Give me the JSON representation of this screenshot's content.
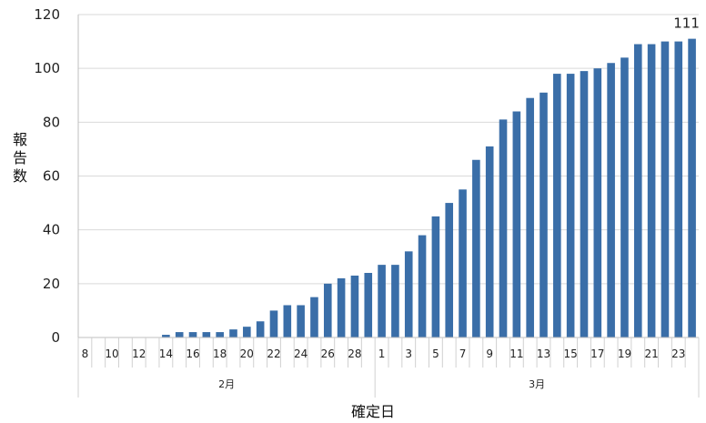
{
  "chart_data": {
    "type": "bar",
    "title": "",
    "xlabel": "確定日",
    "ylabel": "報告数",
    "ylim": [
      0,
      120
    ],
    "yticks": [
      0,
      20,
      40,
      60,
      80,
      100,
      120
    ],
    "grid": true,
    "legend": "none",
    "bar_color": "#3a6ea8",
    "groups": [
      {
        "label": "2月",
        "days": [
          8,
          9,
          10,
          11,
          12,
          13,
          14,
          15,
          16,
          17,
          18,
          19,
          20,
          21,
          22,
          23,
          24,
          25,
          26,
          27,
          28,
          29
        ]
      },
      {
        "label": "3月",
        "days": [
          1,
          2,
          3,
          4,
          5,
          6,
          7,
          8,
          9,
          10,
          11,
          12,
          13,
          14,
          15,
          16,
          17,
          18,
          19,
          20,
          21,
          22,
          23,
          24
        ]
      }
    ],
    "x_tick_labels": [
      "8",
      "",
      "10",
      "",
      "12",
      "",
      "14",
      "",
      "16",
      "",
      "18",
      "",
      "20",
      "",
      "22",
      "",
      "24",
      "",
      "26",
      "",
      "28",
      "",
      "1",
      "",
      "3",
      "",
      "5",
      "",
      "7",
      "",
      "9",
      "",
      "11",
      "",
      "13",
      "",
      "15",
      "",
      "17",
      "",
      "19",
      "",
      "21",
      "",
      "23",
      ""
    ],
    "values": [
      0,
      0,
      0,
      0,
      0,
      0,
      1,
      2,
      2,
      2,
      2,
      3,
      4,
      6,
      10,
      12,
      12,
      15,
      20,
      22,
      23,
      24,
      27,
      27,
      32,
      38,
      45,
      50,
      55,
      66,
      71,
      81,
      84,
      89,
      91,
      98,
      98,
      99,
      100,
      102,
      104,
      109,
      109,
      110,
      110,
      111
    ],
    "data_labels": [
      {
        "index": 45,
        "text": "111"
      }
    ]
  }
}
